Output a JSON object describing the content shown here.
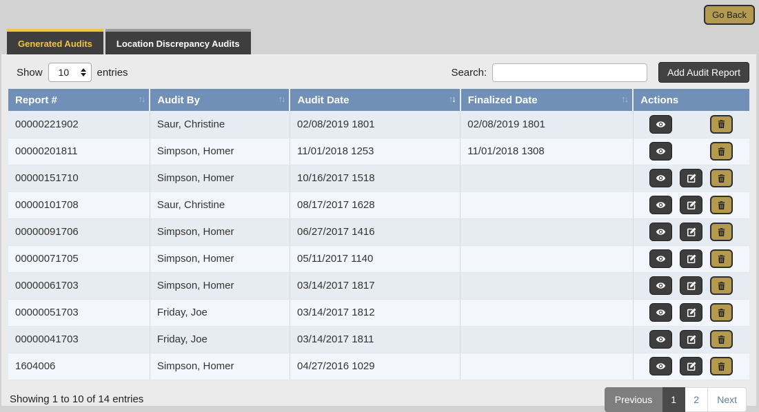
{
  "header": {
    "go_back_label": "Go Back"
  },
  "tabs": [
    {
      "label": "Generated Audits",
      "active": true
    },
    {
      "label": "Location Discrepancy Audits",
      "active": false
    }
  ],
  "toolbar": {
    "show_label": "Show",
    "page_size_value": "10",
    "entries_label": "entries",
    "search_label": "Search:",
    "search_value": "",
    "add_button_label": "Add Audit Report"
  },
  "table": {
    "columns": [
      {
        "key": "report_number",
        "label": "Report #",
        "sortable": true,
        "sort": null
      },
      {
        "key": "audit_by",
        "label": "Audit By",
        "sortable": true,
        "sort": null
      },
      {
        "key": "audit_date",
        "label": "Audit Date",
        "sortable": true,
        "sort": "desc"
      },
      {
        "key": "finalized_date",
        "label": "Finalized Date",
        "sortable": true,
        "sort": null
      },
      {
        "key": "actions",
        "label": "Actions",
        "sortable": false,
        "sort": null
      }
    ],
    "rows": [
      {
        "report_number": "00000221902",
        "audit_by": "Saur, Christine",
        "audit_date": "02/08/2019 1801",
        "finalized_date": "02/08/2019 1801",
        "actions": [
          "view",
          "delete"
        ]
      },
      {
        "report_number": "00000201811",
        "audit_by": "Simpson, Homer",
        "audit_date": "11/01/2018 1253",
        "finalized_date": "11/01/2018 1308",
        "actions": [
          "view",
          "delete"
        ]
      },
      {
        "report_number": "00000151710",
        "audit_by": "Simpson, Homer",
        "audit_date": "10/16/2017 1518",
        "finalized_date": "",
        "actions": [
          "view",
          "edit",
          "delete"
        ]
      },
      {
        "report_number": "00000101708",
        "audit_by": "Saur, Christine",
        "audit_date": "08/17/2017 1628",
        "finalized_date": "",
        "actions": [
          "view",
          "edit",
          "delete"
        ]
      },
      {
        "report_number": "00000091706",
        "audit_by": "Simpson, Homer",
        "audit_date": "06/27/2017 1416",
        "finalized_date": "",
        "actions": [
          "view",
          "edit",
          "delete"
        ]
      },
      {
        "report_number": "00000071705",
        "audit_by": "Simpson, Homer",
        "audit_date": "05/11/2017 1140",
        "finalized_date": "",
        "actions": [
          "view",
          "edit",
          "delete"
        ]
      },
      {
        "report_number": "00000061703",
        "audit_by": "Simpson, Homer",
        "audit_date": "03/14/2017 1817",
        "finalized_date": "",
        "actions": [
          "view",
          "edit",
          "delete"
        ]
      },
      {
        "report_number": "00000051703",
        "audit_by": "Friday, Joe",
        "audit_date": "03/14/2017 1812",
        "finalized_date": "",
        "actions": [
          "view",
          "edit",
          "delete"
        ]
      },
      {
        "report_number": "00000041703",
        "audit_by": "Friday, Joe",
        "audit_date": "03/14/2017 1811",
        "finalized_date": "",
        "actions": [
          "view",
          "edit",
          "delete"
        ]
      },
      {
        "report_number": "1604006",
        "audit_by": "Simpson, Homer",
        "audit_date": "04/27/2016 1029",
        "finalized_date": "",
        "actions": [
          "view",
          "edit",
          "delete"
        ]
      }
    ]
  },
  "footer": {
    "info": "Showing 1 to 10 of 14 entries",
    "pagination": {
      "previous_label": "Previous",
      "pages": [
        "1",
        "2"
      ],
      "active_page": "1",
      "next_label": "Next"
    }
  },
  "icons": {
    "view": "eye-icon",
    "edit": "edit-icon",
    "delete": "trash-icon",
    "sort": "sort-arrows-icon",
    "page_size": "spinner-arrows-icon"
  },
  "colors": {
    "accent_gold": "#b49a4e",
    "tab_active_underline": "#f2c33d",
    "tab_background": "#3e3e3e",
    "table_header_blue": "#7090b8",
    "row_odd": "#e7ebf2",
    "row_even": "#f3f6fc",
    "dark_button": "#3e3e3e",
    "pagination_active": "#4a4a4a",
    "pagination_prev": "#7e7e7e",
    "page_background": "#d2d2d2",
    "panel_background": "#ebebeb"
  }
}
